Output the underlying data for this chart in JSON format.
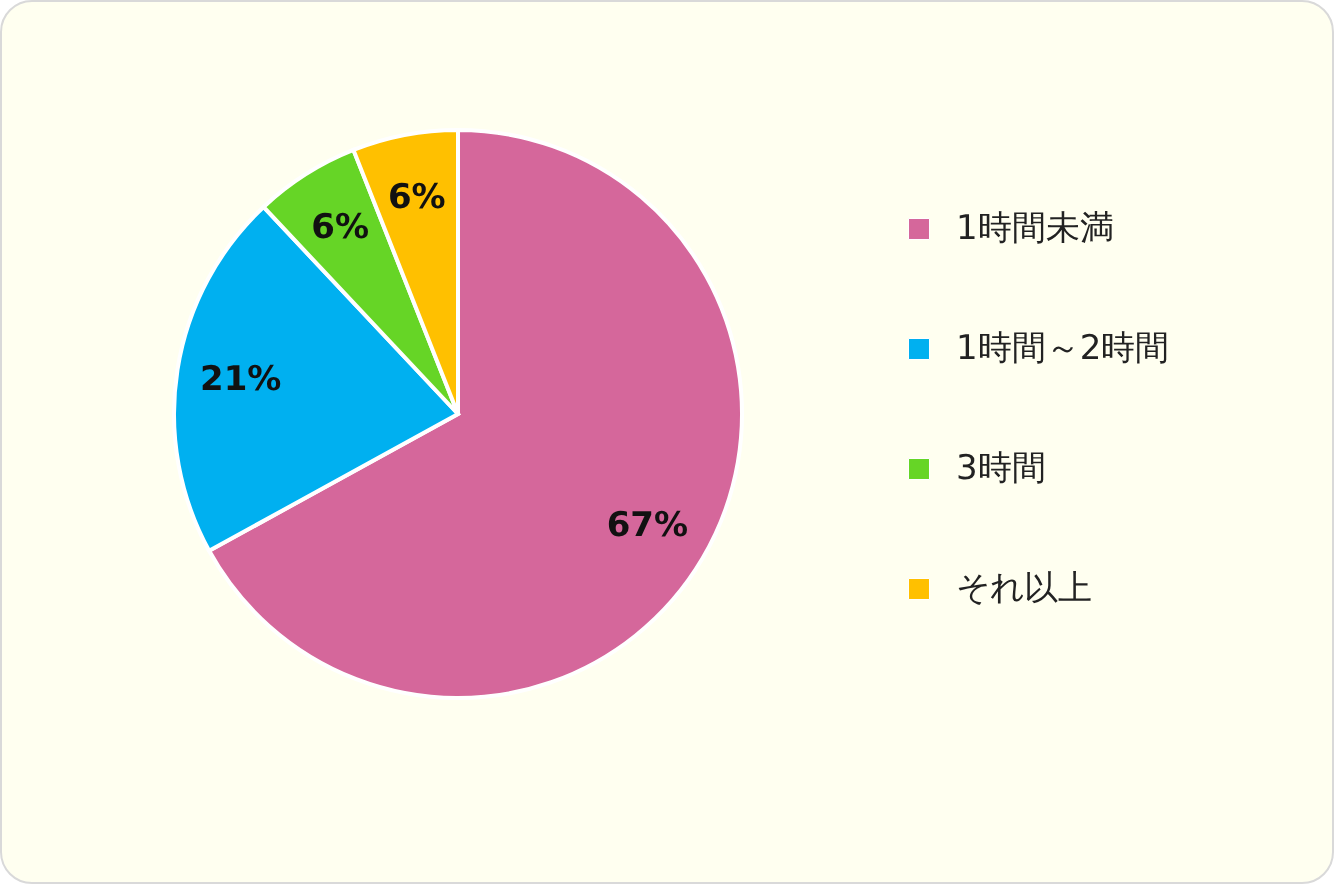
{
  "chart_data": {
    "type": "pie",
    "categories": [
      "1時間未満",
      "1時間～2時間",
      "3時間",
      "それ以上"
    ],
    "values": [
      67,
      21,
      6,
      6
    ],
    "colors": [
      "#d5679b",
      "#00b0f0",
      "#66d526",
      "#ffc000"
    ],
    "value_labels": [
      "67%",
      "21%",
      "6%",
      "6%"
    ],
    "legend": "right"
  }
}
